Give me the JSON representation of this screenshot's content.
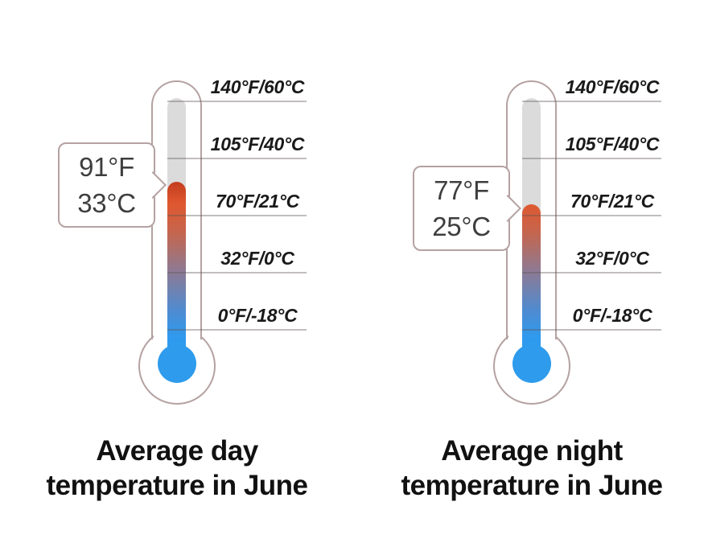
{
  "colors": {
    "background": "#ffffff",
    "outline": "#b5a2a2",
    "empty_tube": "#dbdbdb",
    "bulb_blue": "#2e9bec",
    "mercury_hot": "#c33d1e",
    "mercury_warm": "#df5830",
    "mercury_cold": "#2b9df2",
    "tick_line": "#a99c9c",
    "tick_label_text": "#1a1a1a",
    "callout_text": "#3e3e3e",
    "caption_text": "#111111"
  },
  "scale": {
    "ticks": [
      {
        "label": "140°F/60°C"
      },
      {
        "label": "105°F/40°C"
      },
      {
        "label": "70°F/21°C"
      },
      {
        "label": "32°F/0°C"
      },
      {
        "label": "0°F/-18°C"
      }
    ]
  },
  "thermometers": [
    {
      "value_line1": "91°F",
      "value_line2": "33°C",
      "caption_line1": "Average day",
      "caption_line2": "temperature in June"
    },
    {
      "value_line1": "77°F",
      "value_line2": "25°C",
      "caption_line1": "Average night",
      "caption_line2": "temperature in June"
    }
  ],
  "chart_data": {
    "type": "gauge",
    "gauges": [
      {
        "label": "Average day temperature in June",
        "value_f": 91,
        "value_c": 33
      },
      {
        "label": "Average night temperature in June",
        "value_f": 77,
        "value_c": 25
      }
    ],
    "scale_ticks": [
      {
        "label": "140°F/60°C",
        "fahrenheit": 140,
        "celsius": 60
      },
      {
        "label": "105°F/40°C",
        "fahrenheit": 105,
        "celsius": 40
      },
      {
        "label": "70°F/21°C",
        "fahrenheit": 70,
        "celsius": 21
      },
      {
        "label": "32°F/0°C",
        "fahrenheit": 32,
        "celsius": 0
      },
      {
        "label": "0°F/-18°C",
        "fahrenheit": 0,
        "celsius": -18
      }
    ],
    "axis_range_f": [
      0,
      140
    ],
    "legend_position": "none",
    "grid": "horizontal tick lines only"
  }
}
